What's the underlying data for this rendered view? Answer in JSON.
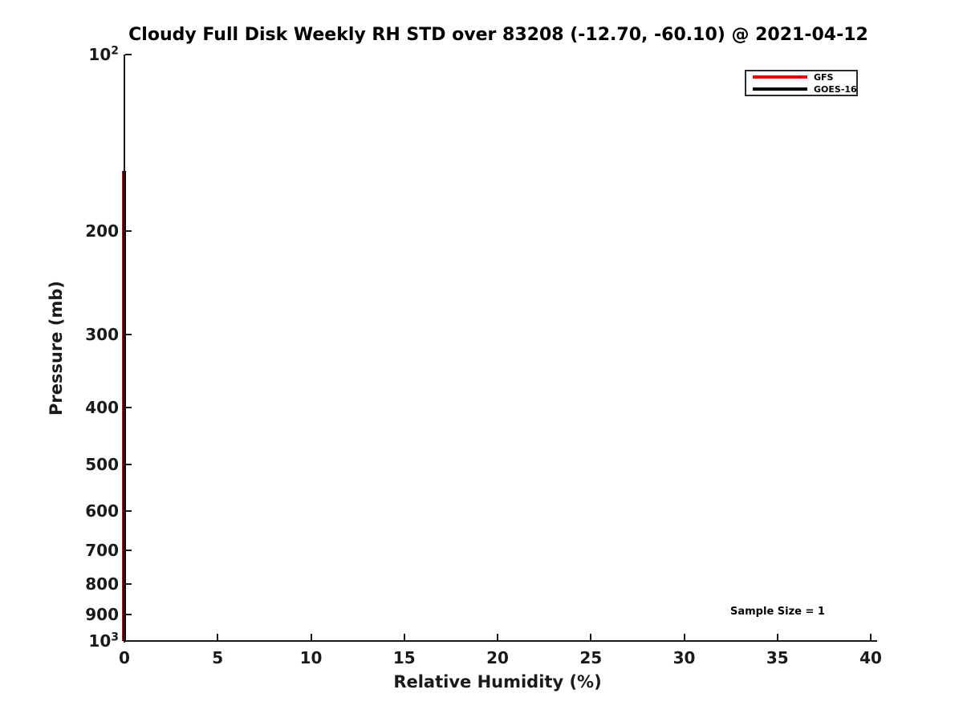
{
  "chart_data": {
    "type": "line",
    "title": "Cloudy Full Disk Weekly RH STD over 83208 (-12.70, -60.10) @ 2021-04-12",
    "xlabel": "Relative Humidity (%)",
    "ylabel": "Pressure (mb)",
    "xlim": [
      0,
      40
    ],
    "ylim_mb": [
      100,
      1000
    ],
    "yscale": "log",
    "y_inverted": true,
    "grid": false,
    "background": "#ffffff",
    "xticks": [
      0,
      5,
      10,
      15,
      20,
      25,
      30,
      35,
      40
    ],
    "yticks": [
      {
        "value": 100,
        "label": "10^2"
      },
      {
        "value": 200,
        "label": "200"
      },
      {
        "value": 300,
        "label": "300"
      },
      {
        "value": 400,
        "label": "400"
      },
      {
        "value": 500,
        "label": "500"
      },
      {
        "value": 600,
        "label": "600"
      },
      {
        "value": 700,
        "label": "700"
      },
      {
        "value": 800,
        "label": "800"
      },
      {
        "value": 900,
        "label": "900"
      },
      {
        "value": 1000,
        "label": "10^3"
      }
    ],
    "legend": {
      "position": "upper right",
      "entries": [
        "GFS",
        "GOES-16"
      ]
    },
    "series": [
      {
        "name": "GFS",
        "color": "#e60000",
        "rh_std_value": 0,
        "pressure_range_mb": [
          158,
          1000
        ],
        "shape": "vertical line at RH STD = 0 for all pressure levels"
      },
      {
        "name": "GOES-16",
        "color": "#000000",
        "rh_std_value": 0,
        "pressure_range_mb": [
          158,
          1000
        ],
        "shape": "vertical line at RH STD = 0 for all pressure levels"
      }
    ],
    "annotations": [
      {
        "text": "Sample Size = 1",
        "x": 35,
        "pressure_mb": 895
      }
    ]
  }
}
